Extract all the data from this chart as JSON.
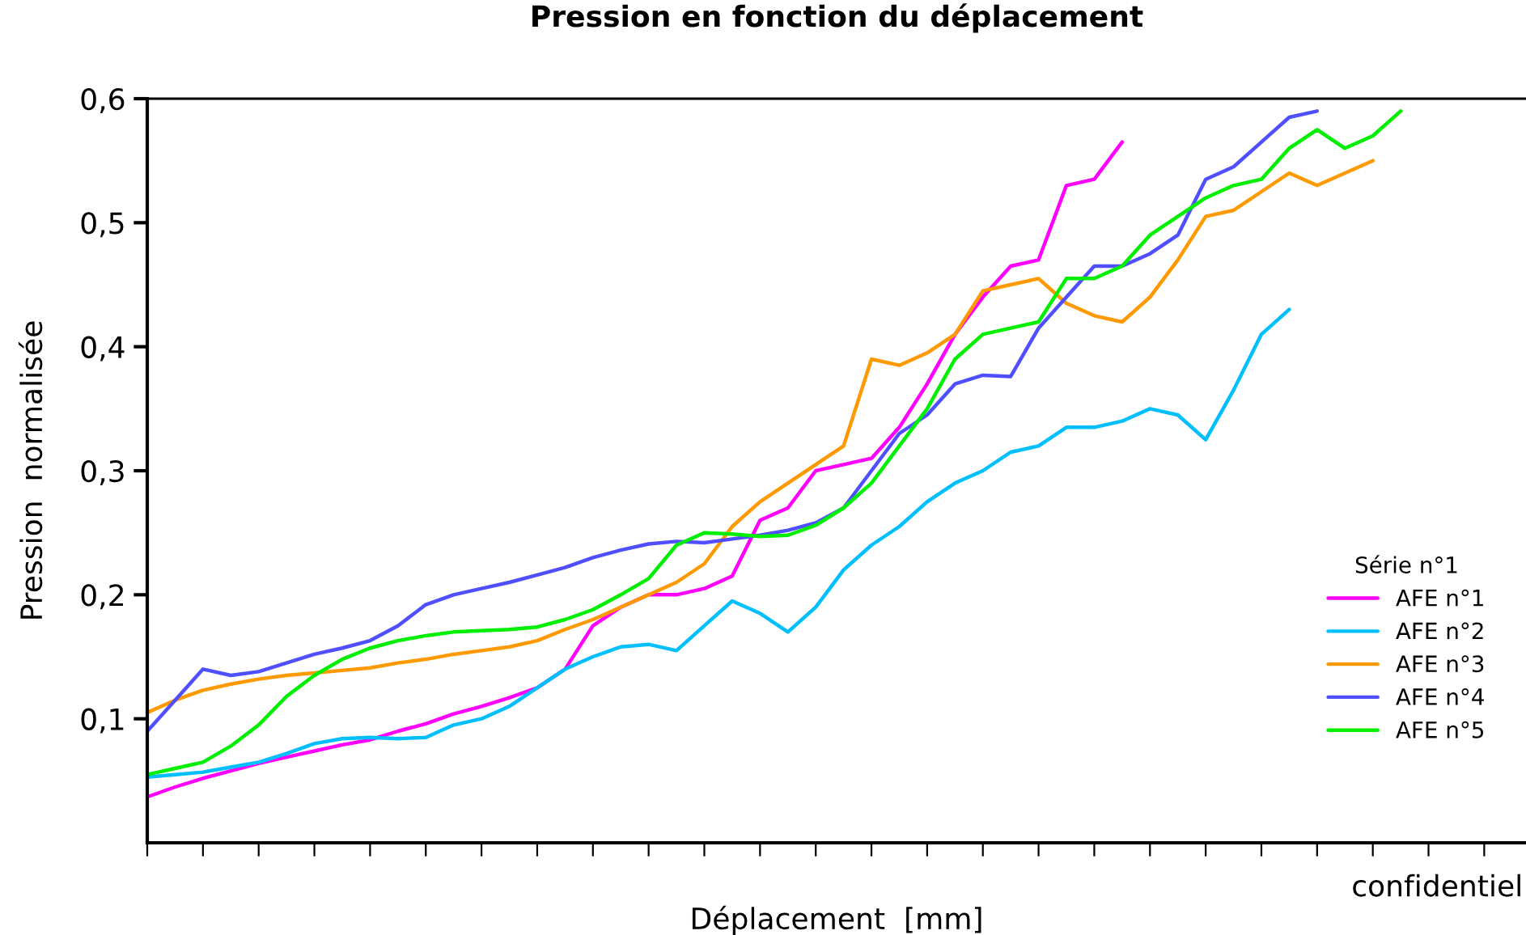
{
  "chart_data": {
    "type": "line",
    "title": "Pression en fonction du déplacement",
    "xlabel": "Déplacement  [mm]",
    "ylabel": "Pression  normalisée",
    "legend_title": "Série n°1",
    "legend": "right",
    "grid": false,
    "tick_labels": "y",
    "marker": "none",
    "line_style": "solid",
    "annotations": [
      "confidentiel"
    ],
    "categories": [
      null,
      null,
      null,
      null,
      null,
      null,
      null,
      null,
      null,
      null,
      null,
      null,
      null,
      null,
      null,
      null,
      null,
      null,
      null,
      null,
      null,
      null,
      null,
      null,
      null,
      null,
      null,
      null,
      null,
      null,
      null,
      null,
      null,
      null,
      null,
      null,
      null,
      null,
      null,
      null,
      null,
      null,
      null,
      null,
      null,
      null,
      null,
      null,
      null,
      null
    ],
    "ylim": [
      0,
      0.6
    ],
    "yticks": [
      {
        "value": 0.1,
        "label": "0,1"
      },
      {
        "value": 0.2,
        "label": "0,2"
      },
      {
        "value": 0.3,
        "label": "0,3"
      },
      {
        "value": 0.4,
        "label": "0,4"
      },
      {
        "value": 0.5,
        "label": "0,5"
      },
      {
        "value": 0.6,
        "label": "0,6"
      }
    ],
    "series": [
      {
        "name": "AFE n°1",
        "color": "#ff00ff",
        "values": [
          0.037,
          0.045,
          0.052,
          0.058,
          0.064,
          0.069,
          0.074,
          0.079,
          0.083,
          0.09,
          0.096,
          0.104,
          0.11,
          0.117,
          0.125,
          0.14,
          0.175,
          0.19,
          0.2,
          0.2,
          0.205,
          0.215,
          0.26,
          0.27,
          0.3,
          0.305,
          0.31,
          0.335,
          0.37,
          0.41,
          0.44,
          0.465,
          0.47,
          0.53,
          0.535,
          0.565,
          null,
          null,
          null,
          null,
          null,
          null,
          null,
          null,
          null,
          null,
          null,
          null,
          null,
          null
        ]
      },
      {
        "name": "AFE n°2",
        "color": "#00bfff",
        "values": [
          0.053,
          0.055,
          0.057,
          0.061,
          0.065,
          0.072,
          0.08,
          0.084,
          0.085,
          0.084,
          0.085,
          0.095,
          0.1,
          0.11,
          0.125,
          0.14,
          0.15,
          0.158,
          0.16,
          0.155,
          0.175,
          0.195,
          0.185,
          0.17,
          0.19,
          0.22,
          0.24,
          0.255,
          0.275,
          0.29,
          0.3,
          0.315,
          0.32,
          0.335,
          0.335,
          0.34,
          0.35,
          0.345,
          0.325,
          0.365,
          0.41,
          0.43,
          null,
          null,
          null,
          null,
          null,
          null,
          null,
          null
        ]
      },
      {
        "name": "AFE n°3",
        "color": "#ff9900",
        "values": [
          0.105,
          0.115,
          0.123,
          0.128,
          0.132,
          0.135,
          0.137,
          0.139,
          0.141,
          0.145,
          0.148,
          0.152,
          0.155,
          0.158,
          0.163,
          0.172,
          0.18,
          0.19,
          0.2,
          0.21,
          0.225,
          0.255,
          0.275,
          0.29,
          0.305,
          0.32,
          0.39,
          0.385,
          0.395,
          0.41,
          0.445,
          0.45,
          0.455,
          0.435,
          0.425,
          0.42,
          0.44,
          0.47,
          0.505,
          0.51,
          0.525,
          0.54,
          0.53,
          0.54,
          0.55,
          null,
          null,
          null,
          null,
          null
        ]
      },
      {
        "name": "AFE n°4",
        "color": "#4f4fff",
        "values": [
          0.09,
          0.115,
          0.14,
          0.135,
          0.138,
          0.145,
          0.152,
          0.157,
          0.163,
          0.175,
          0.192,
          0.2,
          0.205,
          0.21,
          0.216,
          0.222,
          0.23,
          0.236,
          0.241,
          0.243,
          0.242,
          0.245,
          0.248,
          0.252,
          0.258,
          0.27,
          0.3,
          0.33,
          0.345,
          0.37,
          0.377,
          0.376,
          0.415,
          0.44,
          0.465,
          0.465,
          0.475,
          0.49,
          0.535,
          0.545,
          0.565,
          0.585,
          0.59,
          null,
          null,
          null,
          null,
          null,
          null,
          null
        ]
      },
      {
        "name": "AFE n°5",
        "color": "#00ee00",
        "values": [
          0.055,
          0.06,
          0.065,
          0.078,
          0.095,
          0.118,
          0.135,
          0.148,
          0.157,
          0.163,
          0.167,
          0.17,
          0.171,
          0.172,
          0.174,
          0.18,
          0.188,
          0.2,
          0.213,
          0.24,
          0.25,
          0.249,
          0.247,
          0.248,
          0.256,
          0.27,
          0.29,
          0.32,
          0.35,
          0.39,
          0.41,
          0.415,
          0.42,
          0.455,
          0.455,
          0.465,
          0.49,
          0.505,
          0.52,
          0.53,
          0.535,
          0.56,
          0.575,
          0.56,
          0.57,
          0.59,
          null,
          null,
          null,
          null
        ]
      }
    ]
  }
}
